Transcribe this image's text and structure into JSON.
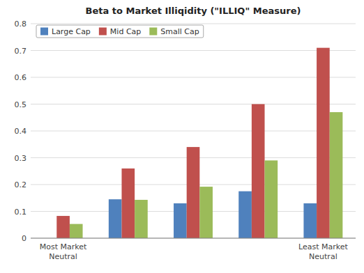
{
  "chart_data": {
    "type": "bar",
    "title": "Beta to Market Illiqidity (\"ILLIQ\" Measure)",
    "categories": [
      "Most Market\nNeutral",
      null,
      null,
      null,
      "Least Market\nNeutral"
    ],
    "series": [
      {
        "name": "Large Cap",
        "color": "#4F81BD",
        "values": [
          0.0,
          0.145,
          0.13,
          0.175,
          0.13
        ]
      },
      {
        "name": "Mid Cap",
        "color": "#C0504D",
        "values": [
          0.083,
          0.26,
          0.34,
          0.5,
          0.71
        ]
      },
      {
        "name": "Small Cap",
        "color": "#9BBB59",
        "values": [
          0.053,
          0.143,
          0.192,
          0.29,
          0.47
        ]
      }
    ],
    "ylim": [
      0,
      0.8
    ],
    "yticks": [
      0,
      0.1,
      0.2,
      0.3,
      0.4,
      0.5,
      0.6,
      0.7,
      0.8
    ],
    "grid": true,
    "legend": "upper left"
  }
}
